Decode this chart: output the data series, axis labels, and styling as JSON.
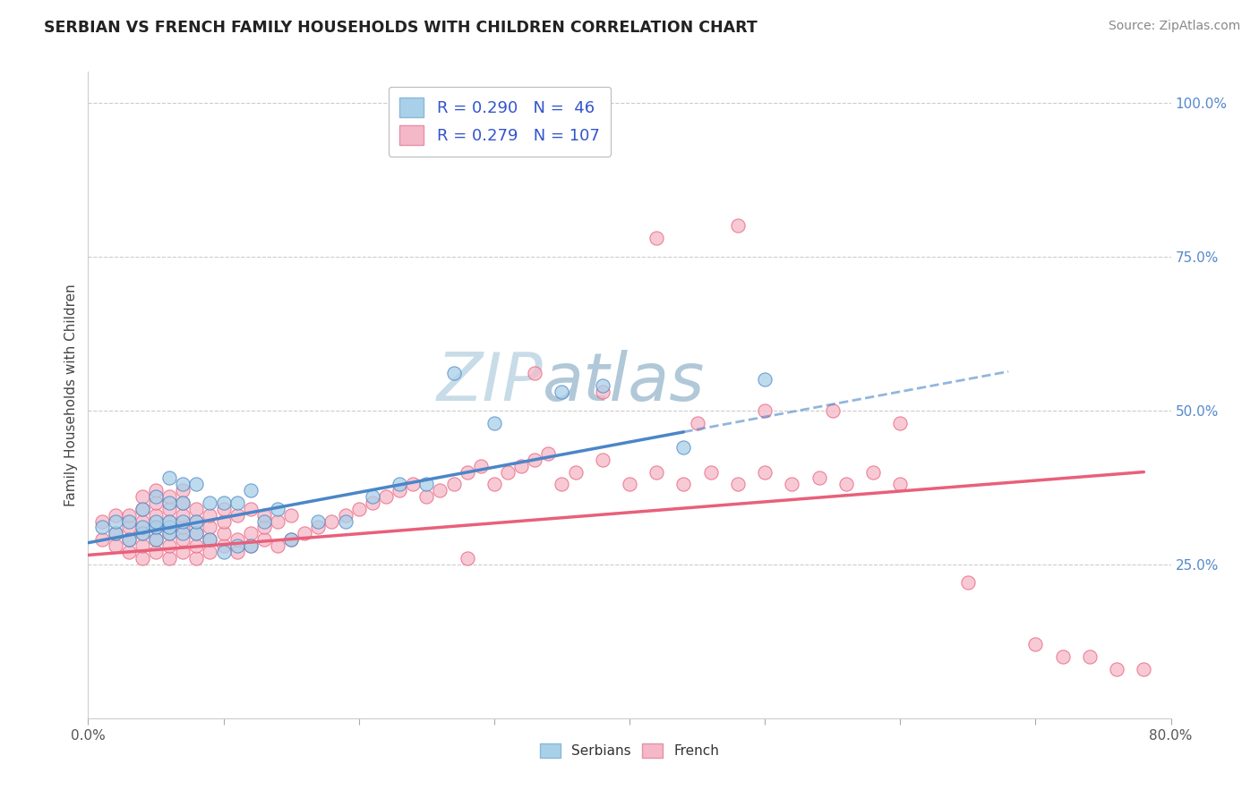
{
  "title": "SERBIAN VS FRENCH FAMILY HOUSEHOLDS WITH CHILDREN CORRELATION CHART",
  "source": "Source: ZipAtlas.com",
  "ylabel": "Family Households with Children",
  "xlim": [
    0.0,
    0.8
  ],
  "ylim": [
    0.0,
    1.05
  ],
  "serbian_color": "#a8d0e8",
  "french_color": "#f5b8c8",
  "serbian_line_color": "#4a86c8",
  "french_line_color": "#e8607a",
  "right_tick_color": "#5588cc",
  "serbian_R": 0.29,
  "serbian_N": 46,
  "french_R": 0.279,
  "french_N": 107,
  "legend_text_color": "#3355cc",
  "watermark_color": "#d8e8f0",
  "serbian_scatter_x": [
    0.01,
    0.02,
    0.02,
    0.03,
    0.03,
    0.04,
    0.04,
    0.04,
    0.05,
    0.05,
    0.05,
    0.05,
    0.06,
    0.06,
    0.06,
    0.06,
    0.06,
    0.07,
    0.07,
    0.07,
    0.07,
    0.08,
    0.08,
    0.08,
    0.09,
    0.09,
    0.1,
    0.1,
    0.11,
    0.11,
    0.12,
    0.12,
    0.13,
    0.14,
    0.15,
    0.17,
    0.19,
    0.21,
    0.23,
    0.25,
    0.27,
    0.3,
    0.35,
    0.38,
    0.44,
    0.5
  ],
  "serbian_scatter_y": [
    0.31,
    0.3,
    0.32,
    0.29,
    0.32,
    0.3,
    0.31,
    0.34,
    0.29,
    0.31,
    0.32,
    0.36,
    0.3,
    0.31,
    0.32,
    0.35,
    0.39,
    0.3,
    0.32,
    0.35,
    0.38,
    0.3,
    0.32,
    0.38,
    0.29,
    0.35,
    0.27,
    0.35,
    0.28,
    0.35,
    0.28,
    0.37,
    0.32,
    0.34,
    0.29,
    0.32,
    0.32,
    0.36,
    0.38,
    0.38,
    0.56,
    0.48,
    0.53,
    0.54,
    0.44,
    0.55
  ],
  "french_scatter_x": [
    0.01,
    0.01,
    0.02,
    0.02,
    0.02,
    0.03,
    0.03,
    0.03,
    0.03,
    0.04,
    0.04,
    0.04,
    0.04,
    0.04,
    0.04,
    0.05,
    0.05,
    0.05,
    0.05,
    0.05,
    0.05,
    0.06,
    0.06,
    0.06,
    0.06,
    0.06,
    0.06,
    0.07,
    0.07,
    0.07,
    0.07,
    0.07,
    0.07,
    0.08,
    0.08,
    0.08,
    0.08,
    0.08,
    0.09,
    0.09,
    0.09,
    0.09,
    0.1,
    0.1,
    0.1,
    0.1,
    0.11,
    0.11,
    0.11,
    0.12,
    0.12,
    0.12,
    0.13,
    0.13,
    0.13,
    0.14,
    0.14,
    0.15,
    0.15,
    0.16,
    0.17,
    0.18,
    0.19,
    0.2,
    0.21,
    0.22,
    0.23,
    0.24,
    0.25,
    0.26,
    0.27,
    0.28,
    0.29,
    0.3,
    0.31,
    0.32,
    0.33,
    0.34,
    0.35,
    0.36,
    0.38,
    0.4,
    0.42,
    0.44,
    0.46,
    0.48,
    0.5,
    0.52,
    0.54,
    0.56,
    0.58,
    0.6,
    0.45,
    0.5,
    0.55,
    0.6,
    0.65,
    0.7,
    0.72,
    0.74,
    0.76,
    0.78,
    0.48,
    0.42,
    0.38,
    0.28,
    0.33
  ],
  "french_scatter_y": [
    0.29,
    0.32,
    0.28,
    0.3,
    0.33,
    0.27,
    0.29,
    0.31,
    0.33,
    0.26,
    0.28,
    0.3,
    0.32,
    0.34,
    0.36,
    0.27,
    0.29,
    0.31,
    0.33,
    0.35,
    0.37,
    0.26,
    0.28,
    0.3,
    0.32,
    0.34,
    0.36,
    0.27,
    0.29,
    0.31,
    0.33,
    0.35,
    0.37,
    0.26,
    0.28,
    0.3,
    0.32,
    0.34,
    0.27,
    0.29,
    0.31,
    0.33,
    0.28,
    0.3,
    0.32,
    0.34,
    0.27,
    0.29,
    0.33,
    0.28,
    0.3,
    0.34,
    0.29,
    0.31,
    0.33,
    0.28,
    0.32,
    0.29,
    0.33,
    0.3,
    0.31,
    0.32,
    0.33,
    0.34,
    0.35,
    0.36,
    0.37,
    0.38,
    0.36,
    0.37,
    0.38,
    0.4,
    0.41,
    0.38,
    0.4,
    0.41,
    0.42,
    0.43,
    0.38,
    0.4,
    0.42,
    0.38,
    0.4,
    0.38,
    0.4,
    0.38,
    0.4,
    0.38,
    0.39,
    0.38,
    0.4,
    0.38,
    0.48,
    0.5,
    0.5,
    0.48,
    0.22,
    0.12,
    0.1,
    0.1,
    0.08,
    0.08,
    0.8,
    0.78,
    0.53,
    0.26,
    0.56
  ]
}
